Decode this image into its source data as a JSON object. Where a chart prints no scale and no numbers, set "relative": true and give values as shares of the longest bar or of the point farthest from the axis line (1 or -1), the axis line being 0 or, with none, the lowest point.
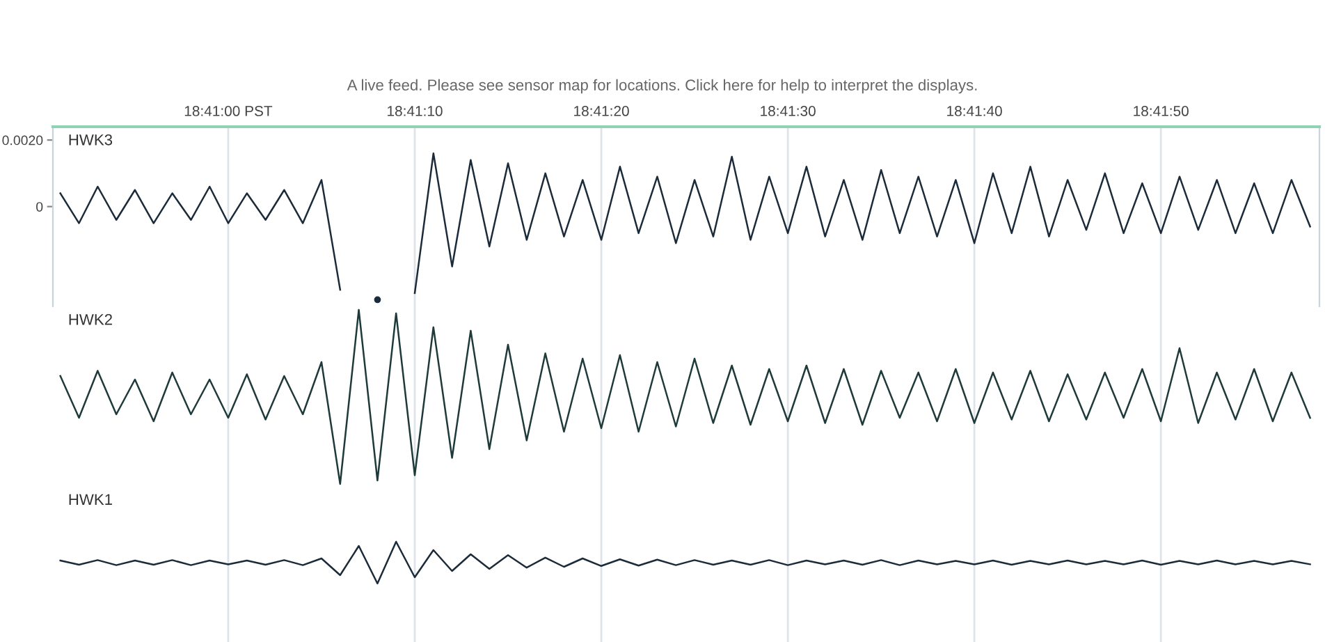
{
  "chart_data": [
    {
      "type": "line",
      "subtitle": "A live feed. Please see sensor map for locations. Click here for help to interpret the displays.",
      "x": [
        18.680833,
        18.681111,
        18.681389,
        18.681667,
        18.681944,
        18.682222,
        18.6825,
        18.682778,
        18.683056,
        18.683333,
        18.683611,
        18.683889,
        18.684167,
        18.684444,
        18.684722,
        18.685,
        18.685278,
        18.685556,
        18.685833,
        18.686111,
        18.686389,
        18.686667,
        18.686944,
        18.687222,
        18.6875,
        18.687778,
        18.688056,
        18.688333,
        18.688611,
        18.688889,
        18.689167,
        18.689444,
        18.689722,
        18.69,
        18.690278,
        18.690556,
        18.690833,
        18.691111,
        18.691389,
        18.691667,
        18.691944,
        18.692222,
        18.6925,
        18.692778,
        18.693056,
        18.693333,
        18.693611,
        18.693889,
        18.694167,
        18.694444,
        18.694722,
        18.695,
        18.695278,
        18.695556,
        18.695833,
        18.696111,
        18.696389,
        18.696667,
        18.696944,
        18.697222,
        18.6975,
        18.697778,
        18.698056,
        18.698333,
        18.698611,
        18.698889,
        18.699167,
        18.699444
      ],
      "series": [
        {
          "name": "HWK3",
          "color": "#1c2b3a",
          "values": [
            0.0004,
            -0.0005,
            0.0006,
            -0.0004,
            0.0005,
            -0.0005,
            0.0004,
            -0.0004,
            0.0006,
            -0.0005,
            0.0004,
            -0.0004,
            0.0005,
            -0.0005,
            0.0008,
            -0.0025,
            null,
            -0.0028,
            null,
            -0.0026,
            0.0016,
            -0.0018,
            0.0014,
            -0.0012,
            0.0013,
            -0.001,
            0.001,
            -0.0009,
            0.0008,
            -0.001,
            0.0012,
            -0.0008,
            0.0009,
            -0.0011,
            0.0008,
            -0.0009,
            0.0015,
            -0.001,
            0.0009,
            -0.0008,
            0.0012,
            -0.0009,
            0.0008,
            -0.001,
            0.0011,
            -0.0008,
            0.0009,
            -0.0009,
            0.0008,
            -0.0011,
            0.001,
            -0.0008,
            0.0012,
            -0.0009,
            0.0008,
            -0.0007,
            0.001,
            -0.0008,
            0.0007,
            -0.0008,
            0.0009,
            -0.0007,
            0.0008,
            -0.0008,
            0.0007,
            -0.0008,
            0.0008,
            -0.0006
          ]
        }
      ],
      "xlim": [
        18.680722,
        18.699583
      ],
      "xticks": [
        {
          "value": 18.683333,
          "label": "18:41:00 PST"
        },
        {
          "value": 18.686111,
          "label": "18:41:10"
        },
        {
          "value": 18.688889,
          "label": "18:41:20"
        },
        {
          "value": 18.691667,
          "label": "18:41:30"
        },
        {
          "value": 18.694444,
          "label": "18:41:40"
        },
        {
          "value": 18.697222,
          "label": "18:41:50"
        }
      ],
      "ylim": [
        -0.003,
        0.0024
      ],
      "yticks": [
        {
          "value": 0.002,
          "label": "0.0020"
        },
        0
      ],
      "grid": "x"
    },
    {
      "type": "line",
      "relative": true,
      "categories": [
        null,
        null,
        null,
        null,
        null,
        null,
        null,
        null,
        null,
        null,
        null,
        null,
        null,
        null,
        null,
        null,
        null,
        null,
        null,
        null,
        null,
        null,
        null,
        null,
        null,
        null,
        null,
        null,
        null,
        null,
        null,
        null,
        null,
        null,
        null,
        null,
        null,
        null,
        null,
        null,
        null,
        null,
        null,
        null,
        null,
        null,
        null,
        null,
        null,
        null,
        null,
        null,
        null,
        null,
        null,
        null,
        null,
        null,
        null,
        null,
        null,
        null,
        null,
        null,
        null,
        null,
        null,
        null
      ],
      "series": [
        {
          "name": "HWK2",
          "color": "#1e3a3a",
          "values": [
            0.62,
            0.38,
            0.65,
            0.4,
            0.6,
            0.36,
            0.64,
            0.4,
            0.6,
            0.38,
            0.63,
            0.37,
            0.62,
            0.4,
            0.7,
            0.0,
            1.0,
            0.02,
            0.98,
            0.05,
            0.9,
            0.15,
            0.88,
            0.2,
            0.8,
            0.25,
            0.75,
            0.3,
            0.72,
            0.32,
            0.74,
            0.3,
            0.7,
            0.33,
            0.72,
            0.35,
            0.68,
            0.34,
            0.66,
            0.36,
            0.68,
            0.35,
            0.66,
            0.34,
            0.65,
            0.38,
            0.64,
            0.36,
            0.66,
            0.35,
            0.64,
            0.37,
            0.65,
            0.36,
            0.63,
            0.37,
            0.64,
            0.38,
            0.66,
            0.36,
            0.78,
            0.35,
            0.64,
            0.37,
            0.66,
            0.36,
            0.64,
            0.38
          ]
        }
      ],
      "grid": "x"
    },
    {
      "type": "line",
      "relative": true,
      "categories": [
        null,
        null,
        null,
        null,
        null,
        null,
        null,
        null,
        null,
        null,
        null,
        null,
        null,
        null,
        null,
        null,
        null,
        null,
        null,
        null,
        null,
        null,
        null,
        null,
        null,
        null,
        null,
        null,
        null,
        null,
        null,
        null,
        null,
        null,
        null,
        null,
        null,
        null,
        null,
        null,
        null,
        null,
        null,
        null,
        null,
        null,
        null,
        null,
        null,
        null,
        null,
        null,
        null,
        null,
        null,
        null,
        null,
        null,
        null,
        null,
        null,
        null,
        null,
        null,
        null,
        null,
        null,
        null
      ],
      "series": [
        {
          "name": "HWK1",
          "color": "#1c2b3a",
          "values": [
            0.55,
            0.45,
            0.56,
            0.44,
            0.55,
            0.45,
            0.56,
            0.44,
            0.55,
            0.46,
            0.55,
            0.45,
            0.56,
            0.44,
            0.6,
            0.2,
            0.9,
            0.0,
            1.0,
            0.15,
            0.8,
            0.3,
            0.7,
            0.35,
            0.68,
            0.38,
            0.62,
            0.4,
            0.6,
            0.42,
            0.58,
            0.43,
            0.57,
            0.44,
            0.56,
            0.45,
            0.55,
            0.45,
            0.56,
            0.44,
            0.55,
            0.46,
            0.55,
            0.45,
            0.56,
            0.44,
            0.55,
            0.46,
            0.54,
            0.46,
            0.55,
            0.45,
            0.54,
            0.46,
            0.55,
            0.46,
            0.54,
            0.46,
            0.55,
            0.45,
            0.54,
            0.46,
            0.55,
            0.46,
            0.54,
            0.46,
            0.54,
            0.46
          ]
        }
      ],
      "grid": "x"
    }
  ]
}
